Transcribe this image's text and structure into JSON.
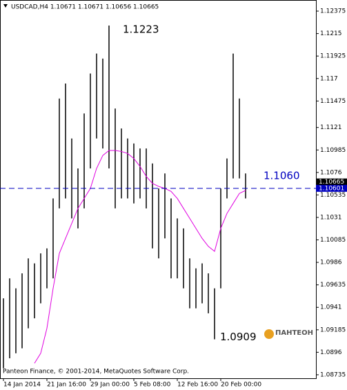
{
  "chart_data": {
    "type": "ohlc",
    "title": "USDCAD,H4  1.10671 1.10671 1.10656 1.10665",
    "footer": "Panteon Finance, © 2001-2014, MetaQuotes Software Corp.",
    "logo": "ПАНТЕОН",
    "color": "#000000",
    "categories": [
      "14 Jan 2014",
      null,
      null,
      null,
      null,
      null,
      null,
      "21 Jan 16:00",
      null,
      null,
      null,
      null,
      null,
      null,
      "29 Jan 00:00",
      null,
      null,
      null,
      null,
      null,
      null,
      "5 Feb 08:00",
      null,
      null,
      null,
      null,
      null,
      null,
      "12 Feb 16:00",
      null,
      null,
      null,
      null,
      null,
      null,
      "20 Feb 00:00",
      null,
      null,
      null,
      null
    ],
    "highs": [
      1.095,
      1.097,
      1.096,
      1.0975,
      1.099,
      1.0985,
      1.0995,
      1.1,
      1.105,
      1.115,
      1.1165,
      1.111,
      1.108,
      1.1135,
      1.1175,
      1.1195,
      1.119,
      1.1223,
      1.114,
      1.112,
      1.111,
      1.1105,
      1.11,
      1.11,
      1.1085,
      1.106,
      1.1075,
      1.105,
      1.103,
      1.102,
      1.099,
      1.098,
      1.0985,
      1.0975,
      1.096,
      1.106,
      1.109,
      1.1195,
      1.115,
      1.1075
    ],
    "lows": [
      1.088,
      1.089,
      1.0895,
      1.09,
      1.092,
      1.093,
      1.0945,
      1.096,
      1.097,
      1.104,
      1.105,
      1.103,
      1.102,
      1.104,
      1.108,
      1.111,
      1.11,
      1.108,
      1.104,
      1.105,
      1.105,
      1.1045,
      1.105,
      1.104,
      1.1,
      1.099,
      1.101,
      1.097,
      1.097,
      1.096,
      1.094,
      1.094,
      1.0945,
      1.0935,
      1.0909,
      1.096,
      1.105,
      1.107,
      1.107,
      1.105
    ],
    "ma": {
      "color": "#e000e0",
      "values": [
        null,
        null,
        null,
        null,
        null,
        1.0885,
        1.0895,
        1.092,
        1.096,
        1.0995,
        1.101,
        1.1025,
        1.104,
        1.105,
        1.106,
        1.108,
        1.1093,
        1.1098,
        1.1098,
        1.1097,
        1.1095,
        1.109,
        1.1082,
        1.1072,
        1.1065,
        1.1062,
        1.106,
        1.1057,
        1.105,
        1.104,
        1.103,
        1.102,
        1.101,
        1.1002,
        1.0997,
        1.102,
        1.1035,
        1.1045,
        1.1055,
        1.1058
      ]
    },
    "hline": {
      "value": 1.10601,
      "label": "1.1060",
      "color": "#0000c0"
    },
    "annotations": [
      {
        "text": "1.1223",
        "value": 1.1223,
        "index": 17
      },
      {
        "text": "1.0909",
        "value": 1.0909,
        "index": 34
      }
    ],
    "price_tags": [
      1.10665,
      1.10601
    ],
    "ylim": [
      1.087,
      1.12486
    ],
    "yticks": [
      1.12375,
      1.1215,
      1.11925,
      1.117,
      1.11475,
      1.1121,
      1.10985,
      1.1076,
      1.10535,
      1.1031,
      1.10085,
      1.0986,
      1.09635,
      1.0941,
      1.09185,
      1.0896,
      1.08735
    ]
  }
}
